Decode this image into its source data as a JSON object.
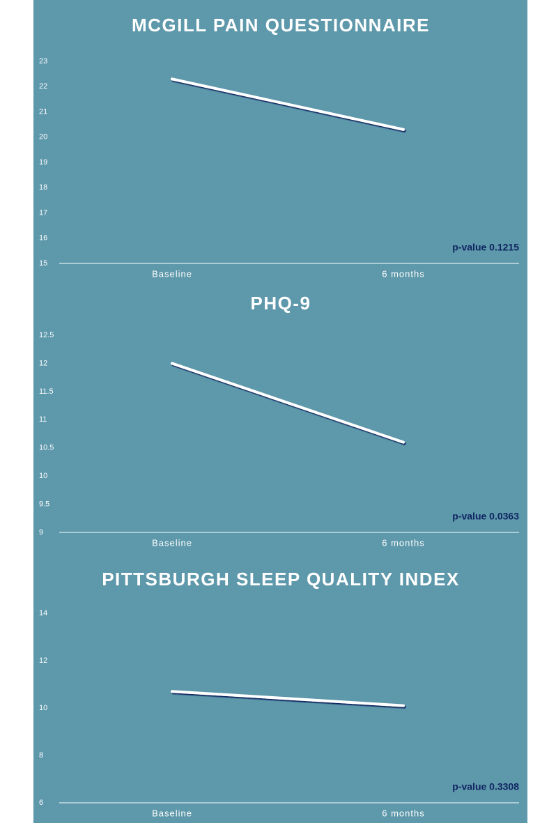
{
  "chart_data": [
    {
      "type": "line",
      "title": "MCGILL PAIN QUESTIONNAIRE",
      "categories": [
        "Baseline",
        "6 months"
      ],
      "series": [
        {
          "color": "#ffffff",
          "values": [
            22.3,
            20.3
          ]
        }
      ],
      "ylim": [
        15,
        23
      ],
      "yticks": [
        15,
        16,
        17,
        18,
        19,
        20,
        21,
        22,
        23
      ],
      "annotation": "p-value 0.1215"
    },
    {
      "type": "line",
      "title": "PHQ-9",
      "categories": [
        "Baseline",
        "6 months"
      ],
      "series": [
        {
          "color": "#ffffff",
          "values": [
            12.0,
            10.6
          ]
        }
      ],
      "ylim": [
        9,
        12.5
      ],
      "yticks": [
        9,
        9.5,
        10,
        10.5,
        11,
        11.5,
        12,
        12.5
      ],
      "annotation": "p-value 0.0363"
    },
    {
      "type": "line",
      "title": "PITTSBURGH SLEEP QUALITY INDEX",
      "categories": [
        "Baseline",
        "6 months"
      ],
      "series": [
        {
          "color": "#ffffff",
          "values": [
            10.7,
            10.1
          ]
        }
      ],
      "ylim": [
        6,
        14
      ],
      "yticks": [
        6,
        8,
        10,
        12,
        14
      ],
      "annotation": "p-value 0.3308"
    }
  ]
}
